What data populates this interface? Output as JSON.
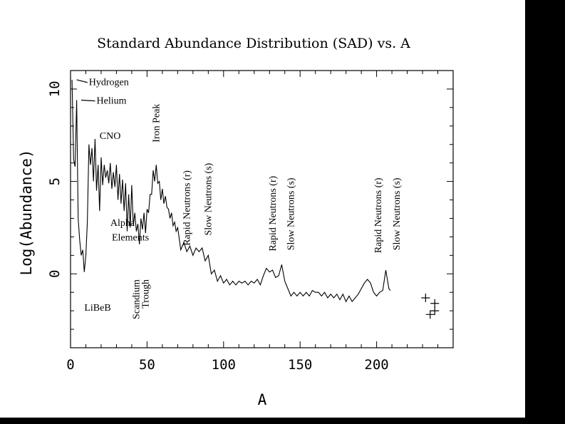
{
  "chart_data": {
    "type": "line",
    "title": "Standard Abundance Distribution (SAD) vs. A",
    "xlabel": "A",
    "ylabel": "Log(Abundance)",
    "xlim": [
      0,
      250
    ],
    "ylim": [
      -4,
      11
    ],
    "xticks": [
      0,
      50,
      100,
      150,
      200
    ],
    "yticks": [
      0,
      5,
      10
    ],
    "grid": false,
    "series": [
      {
        "x": [
          1,
          2,
          3,
          4,
          5,
          6,
          7,
          8,
          9,
          10,
          11,
          12,
          13,
          14,
          15,
          16,
          17,
          18,
          19,
          20,
          21,
          22,
          23,
          24,
          25,
          26,
          27,
          28,
          29,
          30,
          31,
          32,
          33,
          34,
          35,
          36,
          37,
          38,
          39,
          40,
          41,
          42,
          43,
          44,
          45,
          46,
          47,
          48,
          49,
          50,
          51,
          52,
          53,
          54,
          55,
          56,
          57,
          58,
          59,
          60,
          61,
          62,
          63,
          64,
          65,
          66,
          67,
          68,
          69,
          70,
          72,
          74,
          76,
          78,
          80,
          82,
          84,
          86,
          88,
          90,
          92,
          94,
          96,
          98,
          100,
          102,
          104,
          106,
          108,
          110,
          112,
          114,
          116,
          118,
          120,
          122,
          124,
          126,
          128,
          130,
          132,
          134,
          136,
          138,
          140,
          142,
          144,
          146,
          148,
          150,
          152,
          154,
          156,
          158,
          160,
          162,
          164,
          166,
          168,
          170,
          172,
          174,
          176,
          178,
          180,
          182,
          184,
          186,
          188,
          190,
          192,
          194,
          196,
          198,
          200,
          202,
          204,
          206,
          208,
          209
        ],
        "y": [
          10.5,
          6.2,
          5.8,
          9.4,
          3.0,
          1.8,
          1.0,
          1.3,
          0.1,
          1.0,
          2.8,
          7.0,
          5.9,
          6.8,
          5.0,
          7.3,
          4.5,
          5.9,
          3.4,
          6.3,
          4.8,
          5.9,
          5.2,
          5.6,
          4.9,
          6.0,
          4.6,
          5.5,
          4.7,
          5.9,
          4.0,
          5.4,
          3.8,
          5.1,
          3.4,
          4.9,
          2.3,
          4.3,
          2.5,
          4.8,
          2.6,
          3.3,
          2.3,
          2.7,
          1.6,
          3.0,
          2.4,
          3.3,
          2.2,
          3.5,
          3.3,
          4.3,
          4.3,
          5.6,
          5.0,
          5.9,
          4.9,
          5.0,
          4.0,
          4.6,
          3.8,
          4.2,
          3.6,
          3.5,
          3.0,
          3.3,
          2.6,
          2.8,
          2.3,
          2.5,
          1.3,
          1.7,
          1.2,
          1.5,
          1.0,
          1.4,
          1.2,
          1.4,
          0.7,
          1.0,
          0.0,
          0.2,
          -0.4,
          -0.1,
          -0.5,
          -0.3,
          -0.6,
          -0.4,
          -0.6,
          -0.4,
          -0.5,
          -0.4,
          -0.6,
          -0.4,
          -0.5,
          -0.3,
          -0.6,
          -0.1,
          0.3,
          0.1,
          0.2,
          -0.2,
          -0.1,
          0.5,
          -0.4,
          -0.8,
          -1.2,
          -1.0,
          -1.2,
          -1.0,
          -1.2,
          -1.0,
          -1.2,
          -0.9,
          -1.0,
          -1.0,
          -1.2,
          -1.0,
          -1.3,
          -1.1,
          -1.3,
          -1.1,
          -1.4,
          -1.1,
          -1.5,
          -1.2,
          -1.5,
          -1.3,
          -1.1,
          -0.8,
          -0.5,
          -0.3,
          -0.5,
          -1.0,
          -1.2,
          -1.0,
          -0.9,
          0.2,
          -0.8,
          -0.9
        ]
      }
    ],
    "extra_points": {
      "x": [
        232,
        235,
        238,
        238
      ],
      "y": [
        -1.3,
        -2.2,
        -1.6,
        -2.0
      ]
    },
    "annotations": [
      {
        "text": "Hydrogen",
        "x": 12,
        "y": 10.2,
        "orient": "horizontal",
        "leader_from": [
          4,
          10.5
        ]
      },
      {
        "text": "Helium",
        "x": 17,
        "y": 9.2,
        "orient": "horizontal",
        "leader_from": [
          7,
          9.4
        ]
      },
      {
        "text": "CNO",
        "x": 19,
        "y": 7.3,
        "orient": "horizontal"
      },
      {
        "text": "Alpha",
        "x": 26,
        "y": 2.6,
        "orient": "horizontal"
      },
      {
        "text": "Elements",
        "x": 27,
        "y": 1.8,
        "orient": "horizontal"
      },
      {
        "text": "LiBeB",
        "x": 9,
        "y": -2.0,
        "orient": "horizontal"
      },
      {
        "text": "Scandium",
        "x": 45,
        "y": -0.3,
        "orient": "vertical"
      },
      {
        "text": "Trough",
        "x": 51,
        "y": -0.3,
        "orient": "vertical"
      },
      {
        "text": "Iron Peak",
        "x": 58,
        "y": 9.2,
        "orient": "vertical"
      },
      {
        "text": "Rapid Neutrons (r)",
        "x": 78,
        "y": 5.6,
        "orient": "vertical"
      },
      {
        "text": "Slow Neutrons (s)",
        "x": 92,
        "y": 6.0,
        "orient": "vertical"
      },
      {
        "text": "Rapid Neutrons (r)",
        "x": 134,
        "y": 5.3,
        "orient": "vertical"
      },
      {
        "text": "Slow Neutrons (s)",
        "x": 146,
        "y": 5.2,
        "orient": "vertical"
      },
      {
        "text": "Rapid Neutrons (r)",
        "x": 203,
        "y": 5.2,
        "orient": "vertical"
      },
      {
        "text": "Slow Neutrons (s)",
        "x": 215,
        "y": 5.2,
        "orient": "vertical"
      }
    ]
  }
}
